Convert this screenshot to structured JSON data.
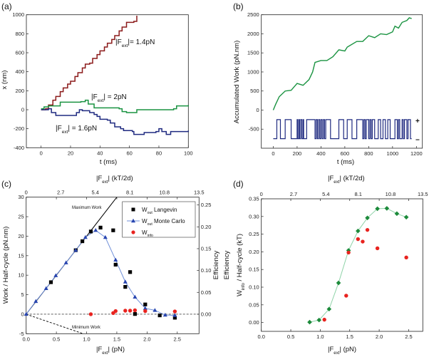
{
  "colors": {
    "red_trace": "#8b1a1a",
    "green_trace": "#1a9341",
    "blue_trace": "#1f2a80",
    "mc_line": "#6f8fd8",
    "mc_marker": "#2845b0",
    "langevin": "#000000",
    "info": "#e8231f",
    "eff": "#1c8a3a",
    "eff_line": "#8fd3a8"
  },
  "chart_data": [
    {
      "panel": "(a)",
      "type": "line",
      "xlabel": "t (ms)",
      "ylabel": "x (nm)",
      "xlim": [
        -10,
        100
      ],
      "ylim": [
        -400,
        1000
      ],
      "xticks": [
        0,
        20,
        40,
        60,
        80,
        100
      ],
      "yticks": [
        -400,
        -200,
        0,
        200,
        400,
        600,
        800,
        1000
      ],
      "series": [
        {
          "label": {
            "pre": "|F",
            "sub": "ext",
            "post": "|= 1.4pN"
          },
          "color": "#8b1a1a",
          "x": [
            0,
            3,
            5,
            8,
            10,
            13,
            15,
            18,
            20,
            23,
            25,
            28,
            30,
            33,
            35,
            38,
            40,
            43,
            45,
            48,
            50,
            53,
            55,
            58,
            60,
            63,
            65
          ],
          "y": [
            0,
            10,
            50,
            100,
            140,
            190,
            230,
            270,
            300,
            350,
            390,
            440,
            480,
            490,
            540,
            580,
            620,
            660,
            700,
            740,
            780,
            830,
            870,
            920,
            920,
            930,
            990
          ]
        },
        {
          "label": {
            "pre": "|F",
            "sub": "ext",
            "post": "| = 2pN"
          },
          "color": "#1a9341",
          "x": [
            0,
            2,
            5,
            12,
            13,
            27,
            30,
            32,
            35,
            36,
            53,
            55,
            58,
            63,
            65,
            90,
            92,
            100
          ],
          "y": [
            10,
            30,
            40,
            40,
            80,
            85,
            100,
            60,
            60,
            20,
            10,
            -20,
            -30,
            -30,
            0,
            10,
            40,
            50
          ]
        },
        {
          "label": {
            "pre": "|F",
            "sub": "ext",
            "post": "| = 1.6pN"
          },
          "color": "#1f2a80",
          "x": [
            0,
            5,
            7,
            10,
            22,
            24,
            26,
            28,
            33,
            36,
            38,
            40,
            45,
            47,
            50,
            54,
            56,
            62,
            63,
            70,
            78,
            80,
            82,
            85,
            88,
            100
          ],
          "y": [
            0,
            10,
            -30,
            -60,
            -60,
            -30,
            0,
            -10,
            -30,
            -50,
            -70,
            -100,
            -110,
            -140,
            -180,
            -200,
            -220,
            -230,
            -260,
            -240,
            -230,
            -200,
            -230,
            -260,
            -230,
            -220
          ]
        }
      ]
    },
    {
      "panel": "(b)",
      "type": "line",
      "xlabel": "t (ms)",
      "ylabel": "Accumulated Work (pN.nm)",
      "xlim": [
        -100,
        1250
      ],
      "ylim": [
        -1000,
        2500
      ],
      "xticks": [
        0,
        200,
        400,
        600,
        800,
        1000,
        1200
      ],
      "yticks": [
        -500,
        0,
        500,
        1000,
        1500,
        2000,
        2500
      ],
      "work": {
        "color": "#1a9341",
        "x": [
          0,
          20,
          50,
          100,
          150,
          200,
          250,
          300,
          330,
          350,
          400,
          450,
          500,
          550,
          600,
          620,
          700,
          750,
          800,
          850,
          900,
          950,
          1000,
          1020,
          1050,
          1080,
          1120,
          1140,
          1160
        ],
        "y": [
          0,
          150,
          350,
          500,
          520,
          700,
          650,
          800,
          1000,
          1250,
          1300,
          1300,
          1400,
          1580,
          1550,
          1650,
          1800,
          1800,
          1950,
          1900,
          2000,
          1980,
          2050,
          2200,
          2150,
          2300,
          2350,
          2420,
          2400
        ]
      },
      "telegraph": {
        "color": "#1f2a80",
        "levels": [
          -750,
          -250
        ],
        "level_labels": [
          "−",
          "+"
        ],
        "switch_times": [
          30,
          60,
          100,
          150,
          200,
          205,
          215,
          220,
          230,
          240,
          250,
          255,
          280,
          350,
          360,
          370,
          380,
          390,
          400,
          410,
          420,
          430,
          440,
          480,
          550,
          590,
          620,
          660,
          700,
          750,
          760,
          770,
          780,
          800,
          810,
          820,
          830,
          850,
          880,
          900,
          920,
          940,
          960,
          980,
          1020,
          1040,
          1050,
          1060,
          1080,
          1090,
          1100,
          1120,
          1130,
          1150
        ]
      }
    },
    {
      "panel": "(c)",
      "type": "scatter",
      "xlabel": {
        "pre": "|F",
        "sub": "ext",
        "post": "| (pN)"
      },
      "x2label": {
        "pre": "|F",
        "sub": "ext",
        "post": "| (kT/2d)"
      },
      "ylabel": "Work / Half-cycle (pN.nm)",
      "y2label": "Efficiency",
      "xlim": [
        0,
        2.86
      ],
      "ylim": [
        -5,
        30
      ],
      "xticks": [
        0.0,
        0.5,
        1.0,
        1.5,
        2.0,
        2.5
      ],
      "yticks": [
        -5,
        0,
        5,
        10,
        15,
        20,
        25,
        30
      ],
      "x2ticks": [
        "0",
        "2.7",
        "5.4",
        "8.1",
        "10.8",
        "13.5"
      ],
      "y2ticks": [
        0.0,
        0.05,
        0.1,
        0.15,
        0.2,
        0.25
      ],
      "y2_per_y": 0.00893,
      "legend_position": "top-right",
      "series": [
        {
          "name": {
            "pre": "W",
            "sub": "out",
            "post": " Langevin"
          },
          "marker": "square",
          "color": "#000000",
          "x": [
            0.41,
            0.82,
            0.93,
            1.07,
            1.23,
            1.44,
            1.48,
            1.64,
            1.72,
            1.8,
            1.97,
            2.21,
            2.46
          ],
          "y": [
            8.2,
            16.4,
            18.7,
            21.2,
            22.2,
            21.5,
            12.7,
            7.0,
            10.8,
            0.05,
            2.5,
            -0.3,
            -0.9
          ]
        },
        {
          "name": {
            "pre": "W",
            "sub": "out",
            "post": " Monte Carlo"
          },
          "marker": "triangle",
          "color": "#2845b0",
          "line": "#6f8fd8",
          "x": [
            0,
            0.16,
            0.33,
            0.49,
            0.66,
            0.82,
            0.98,
            1.15,
            1.31,
            1.48,
            1.64,
            1.8,
            1.97,
            2.13,
            2.3,
            2.46
          ],
          "y": [
            0,
            3.3,
            6.6,
            9.9,
            13.2,
            16.4,
            19.7,
            21.5,
            19.7,
            13.9,
            8.3,
            4.4,
            1.5,
            1.0,
            -0.2,
            -0.3
          ]
        },
        {
          "name": {
            "pre": "W",
            "sub": "info",
            "post": ""
          },
          "marker": "circle",
          "color": "#e8231f",
          "x": [
            1.07,
            1.44,
            1.48,
            1.64,
            1.72,
            1.8,
            1.97,
            2.46
          ],
          "y": [
            0,
            0.3,
            0.8,
            0.9,
            0.9,
            1.0,
            0.8,
            0.7
          ]
        }
      ],
      "annotations": {
        "max_work": "Maximum Work",
        "min_work": "Minimum Work"
      },
      "max_work_slope": 20,
      "min_work_slope": -5.3
    },
    {
      "panel": "(d)",
      "type": "scatter",
      "xlabel": {
        "pre": "|F",
        "sub": "ext",
        "post": "| (pN)"
      },
      "x2label": {
        "pre": "|F",
        "sub": "ext",
        "post": "| (kT/2d)"
      },
      "ylabel": {
        "pre": "W",
        "sub": "info",
        "post": " / Half-cycle (kT)"
      },
      "ylabel2": "Efficiency",
      "xlim": [
        0,
        2.74
      ],
      "ylim": [
        -0.025,
        0.35
      ],
      "xticks": [
        0.0,
        0.5,
        1.0,
        1.5,
        2.0,
        2.5
      ],
      "yticks": [
        0.0,
        0.05,
        0.1,
        0.15,
        0.2,
        0.25,
        0.3,
        0.35
      ],
      "x2ticks": [
        "0",
        "2.7",
        "5.4",
        "8.1",
        "10.8",
        "13.5"
      ],
      "series": [
        {
          "marker": "diamond",
          "color": "#1c8a3a",
          "line": "#8fd3a8",
          "x": [
            0.82,
            0.98,
            1.15,
            1.31,
            1.48,
            1.64,
            1.8,
            1.97,
            2.13,
            2.3,
            2.46
          ],
          "y": [
            0.001,
            0.007,
            0.038,
            0.112,
            0.204,
            0.259,
            0.296,
            0.322,
            0.323,
            0.308,
            0.298
          ]
        },
        {
          "marker": "circle",
          "color": "#e8231f",
          "x": [
            1.07,
            1.44,
            1.48,
            1.64,
            1.72,
            1.8,
            1.97,
            2.46
          ],
          "y": [
            0.008,
            0.076,
            0.198,
            0.236,
            0.229,
            0.262,
            0.21,
            0.184
          ]
        }
      ]
    }
  ]
}
